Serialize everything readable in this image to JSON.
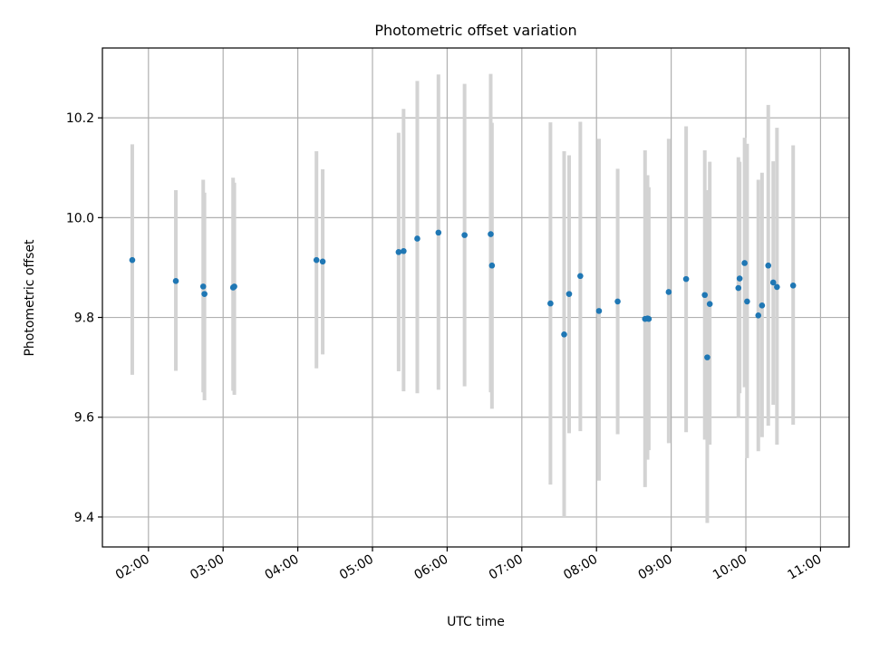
{
  "chart_data": {
    "type": "scatter",
    "title": "Photometric offset variation",
    "xlabel": "UTC time",
    "ylabel": "Photometric offset",
    "x_tick_labels": [
      "02:00",
      "03:00",
      "04:00",
      "05:00",
      "06:00",
      "07:00",
      "08:00",
      "09:00",
      "10:00",
      "11:00"
    ],
    "y_ticks": [
      9.4,
      9.6,
      9.8,
      10.0,
      10.2
    ],
    "y_tick_labels": [
      "9.4",
      "9.6",
      "9.8",
      "10.0",
      "10.2"
    ],
    "xlim": [
      "01:23",
      "11:23"
    ],
    "ylim": [
      9.34,
      10.34
    ],
    "grid": true,
    "marker_color": "#1f77b4",
    "errorbar_color": "#d3d3d3",
    "points": [
      {
        "x": "01:47",
        "y": 9.915,
        "lo": 9.685,
        "hi": 10.147
      },
      {
        "x": "02:22",
        "y": 9.873,
        "lo": 9.693,
        "hi": 10.055
      },
      {
        "x": "02:44",
        "y": 9.862,
        "lo": 9.65,
        "hi": 10.076
      },
      {
        "x": "02:45",
        "y": 9.847,
        "lo": 9.634,
        "hi": 10.05
      },
      {
        "x": "03:08",
        "y": 9.86,
        "lo": 9.653,
        "hi": 10.08
      },
      {
        "x": "03:09",
        "y": 9.862,
        "lo": 9.645,
        "hi": 10.07
      },
      {
        "x": "04:15",
        "y": 9.915,
        "lo": 9.698,
        "hi": 10.133
      },
      {
        "x": "04:20",
        "y": 9.912,
        "lo": 9.726,
        "hi": 10.097
      },
      {
        "x": "05:21",
        "y": 9.931,
        "lo": 9.692,
        "hi": 10.17
      },
      {
        "x": "05:25",
        "y": 9.933,
        "lo": 9.652,
        "hi": 10.218
      },
      {
        "x": "05:36",
        "y": 9.958,
        "lo": 9.648,
        "hi": 10.274
      },
      {
        "x": "05:53",
        "y": 9.97,
        "lo": 9.655,
        "hi": 10.287
      },
      {
        "x": "06:14",
        "y": 9.965,
        "lo": 9.662,
        "hi": 10.268
      },
      {
        "x": "06:35",
        "y": 9.967,
        "lo": 9.65,
        "hi": 10.288
      },
      {
        "x": "06:36",
        "y": 9.904,
        "lo": 9.617,
        "hi": 10.19
      },
      {
        "x": "07:23",
        "y": 9.828,
        "lo": 9.465,
        "hi": 10.191
      },
      {
        "x": "07:34",
        "y": 9.766,
        "lo": 9.4,
        "hi": 10.133
      },
      {
        "x": "07:38",
        "y": 9.847,
        "lo": 9.568,
        "hi": 10.125
      },
      {
        "x": "07:47",
        "y": 9.883,
        "lo": 9.572,
        "hi": 10.192
      },
      {
        "x": "08:02",
        "y": 9.813,
        "lo": 9.473,
        "hi": 10.158
      },
      {
        "x": "08:17",
        "y": 9.832,
        "lo": 9.566,
        "hi": 10.098
      },
      {
        "x": "08:39",
        "y": 9.797,
        "lo": 9.46,
        "hi": 10.135
      },
      {
        "x": "08:41",
        "y": 9.798,
        "lo": 9.515,
        "hi": 10.085
      },
      {
        "x": "08:42",
        "y": 9.797,
        "lo": 9.534,
        "hi": 10.061
      },
      {
        "x": "08:58",
        "y": 9.851,
        "lo": 9.548,
        "hi": 10.158
      },
      {
        "x": "09:12",
        "y": 9.877,
        "lo": 9.57,
        "hi": 10.183
      },
      {
        "x": "09:27",
        "y": 9.845,
        "lo": 9.555,
        "hi": 10.135
      },
      {
        "x": "09:29",
        "y": 9.72,
        "lo": 9.388,
        "hi": 10.055
      },
      {
        "x": "09:31",
        "y": 9.827,
        "lo": 9.545,
        "hi": 10.112
      },
      {
        "x": "09:54",
        "y": 9.859,
        "lo": 9.6,
        "hi": 10.121
      },
      {
        "x": "09:55",
        "y": 9.878,
        "lo": 9.648,
        "hi": 10.112
      },
      {
        "x": "09:59",
        "y": 9.909,
        "lo": 9.66,
        "hi": 10.16
      },
      {
        "x": "10:01",
        "y": 9.832,
        "lo": 9.518,
        "hi": 10.148
      },
      {
        "x": "10:10",
        "y": 9.804,
        "lo": 9.532,
        "hi": 10.076
      },
      {
        "x": "10:13",
        "y": 9.824,
        "lo": 9.56,
        "hi": 10.09
      },
      {
        "x": "10:18",
        "y": 9.904,
        "lo": 9.583,
        "hi": 10.226
      },
      {
        "x": "10:22",
        "y": 9.87,
        "lo": 9.625,
        "hi": 10.113
      },
      {
        "x": "10:25",
        "y": 9.861,
        "lo": 9.545,
        "hi": 10.18
      },
      {
        "x": "10:38",
        "y": 9.864,
        "lo": 9.585,
        "hi": 10.145
      }
    ]
  }
}
